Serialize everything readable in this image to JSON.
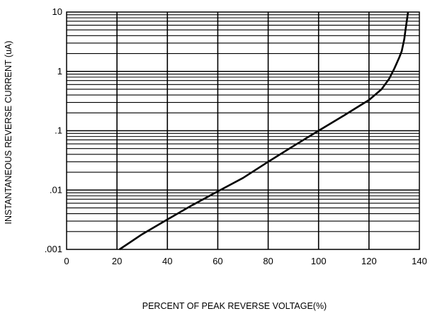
{
  "chart_data": {
    "type": "line",
    "title": "",
    "xlabel": "PERCENT OF PEAK REVERSE VOLTAGE(%)",
    "ylabel": "INSTANTANEOUS REVERSE CURRENT (uA)",
    "xlim": [
      0,
      140
    ],
    "ylim": [
      0.001,
      10
    ],
    "yscale": "log",
    "grid": true,
    "x_ticks": [
      0,
      20,
      40,
      60,
      80,
      100,
      120,
      140
    ],
    "x_tick_labels": [
      "0",
      "20",
      "40",
      "60",
      "80",
      "100",
      "120",
      "140"
    ],
    "y_ticks": [
      0.001,
      0.01,
      0.1,
      1,
      10
    ],
    "y_tick_labels": [
      ".001",
      ".01",
      ".1",
      "1",
      "10"
    ],
    "series": [
      {
        "x": [
          21,
          30,
          40,
          50,
          60,
          70,
          80,
          90,
          100,
          110,
          120,
          125,
          128,
          130,
          132,
          133,
          134,
          134.5,
          135,
          135.5
        ],
        "y": [
          0.001,
          0.0018,
          0.0032,
          0.0056,
          0.0095,
          0.016,
          0.03,
          0.055,
          0.1,
          0.18,
          0.33,
          0.5,
          0.75,
          1.1,
          1.7,
          2.2,
          3.5,
          5,
          7,
          10
        ]
      }
    ]
  }
}
